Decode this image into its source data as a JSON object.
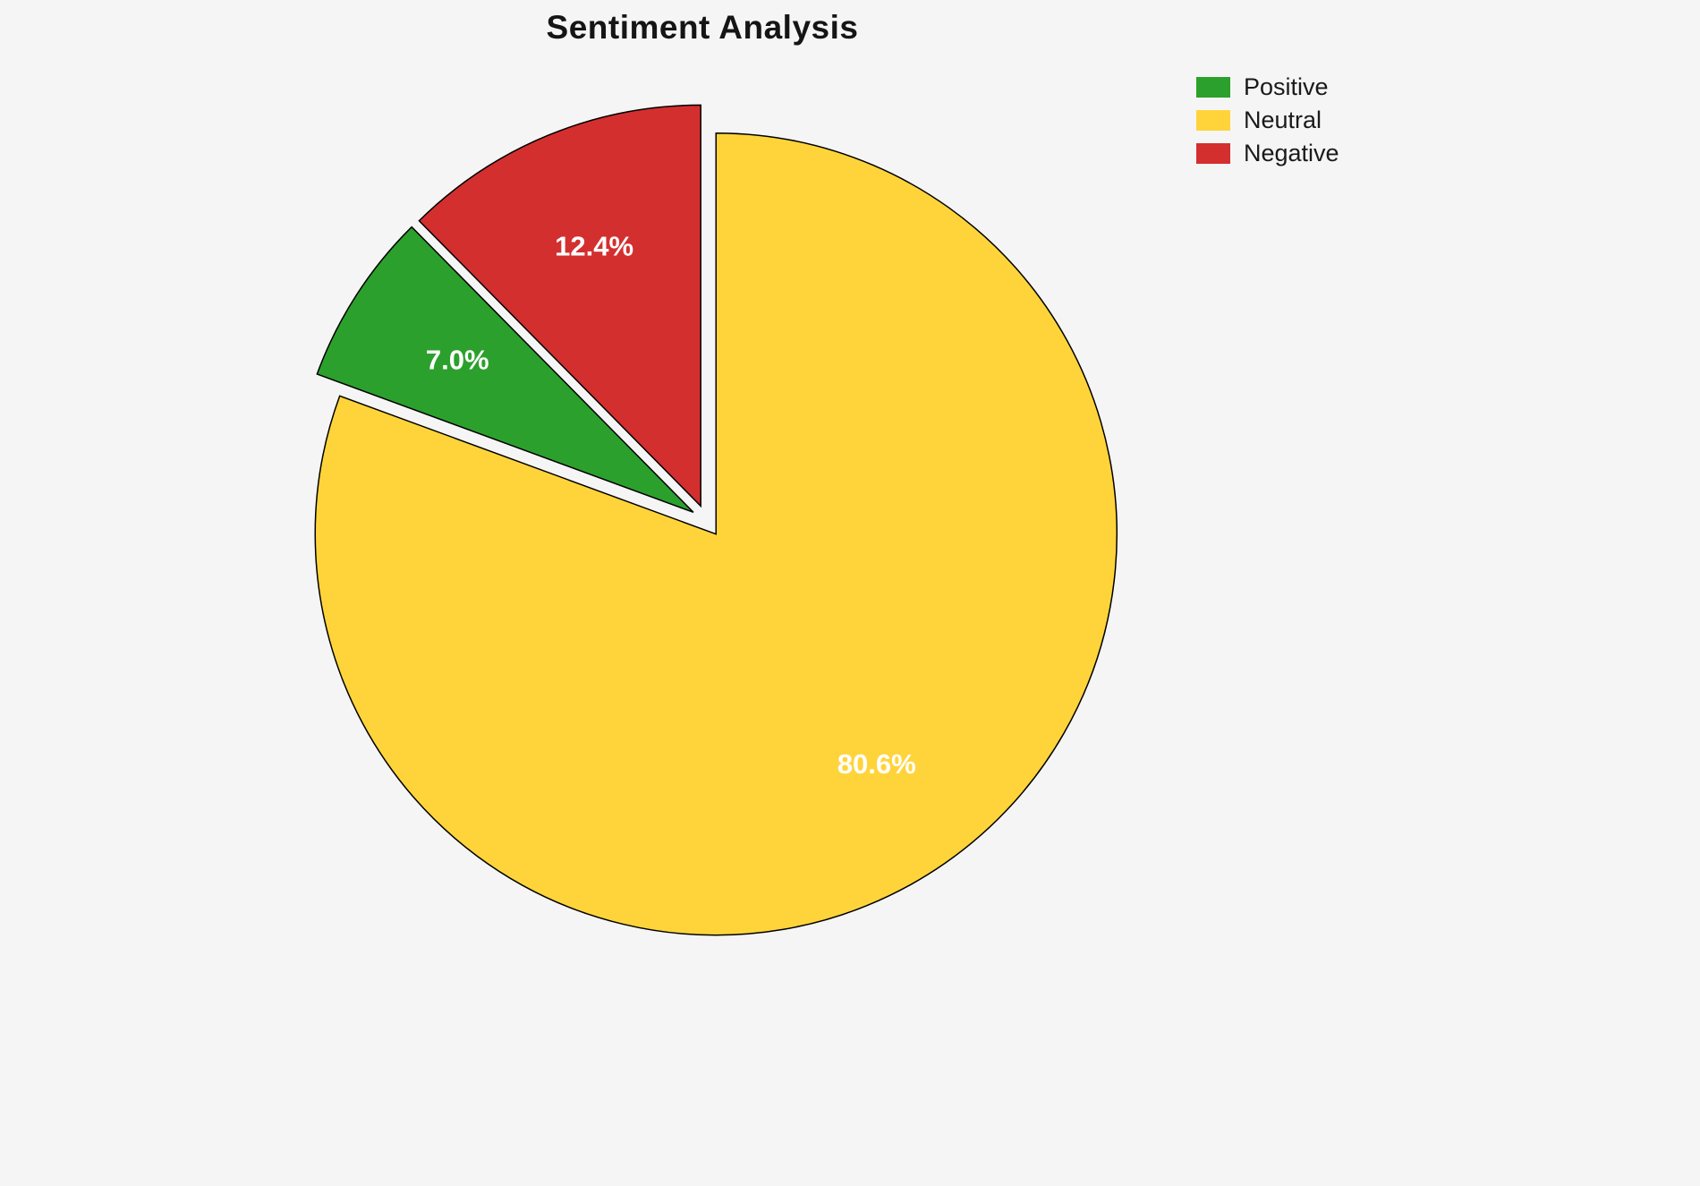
{
  "page": {
    "background_color": "#f5f5f5"
  },
  "chart_data": {
    "type": "pie",
    "title": "Sentiment Analysis",
    "slices": [
      {
        "label": "Positive",
        "value": 7.0,
        "percent_label": "7.0%",
        "color": "#2ca02c"
      },
      {
        "label": "Neutral",
        "value": 80.6,
        "percent_label": "80.6%",
        "color": "#ffd43b"
      },
      {
        "label": "Negative",
        "value": 12.4,
        "percent_label": "12.4%",
        "color": "#d32f2f"
      }
    ],
    "legend": {
      "position": "upper-right",
      "labels": [
        "Positive",
        "Neutral",
        "Negative"
      ]
    },
    "layout": {
      "start_angle_deg": 90,
      "counterclockwise": true,
      "plot_order": [
        2,
        0,
        1
      ],
      "explode": 0.04,
      "pct_distance": 0.7,
      "edge_color": "#000000",
      "edge_width": 1.5,
      "label_color": "#ffffff"
    }
  }
}
